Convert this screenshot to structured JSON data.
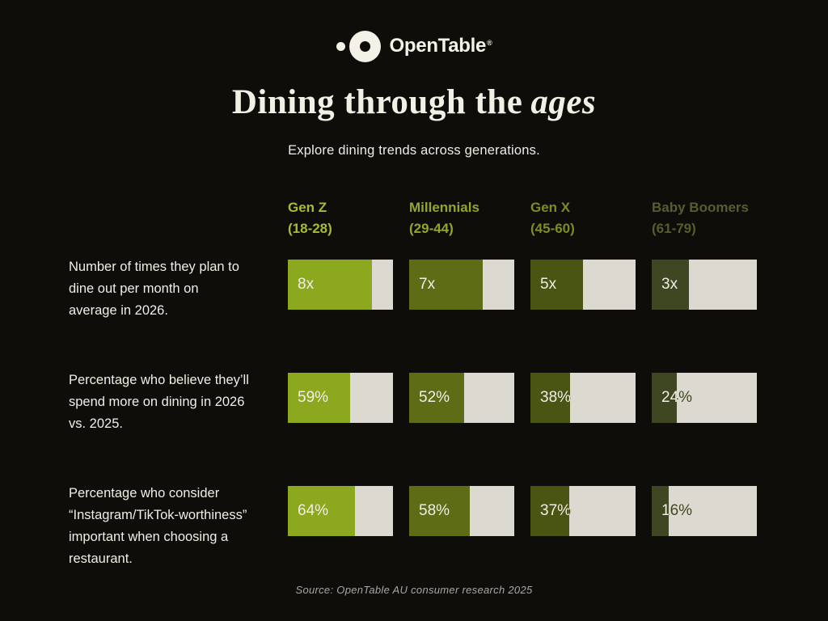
{
  "brand": {
    "logo_text": "OpenTable",
    "registered": "®"
  },
  "header": {
    "title_regular": "Dining through the",
    "title_italic": "ages",
    "subtitle": "Explore dining trends across generations."
  },
  "columns": [
    {
      "name": "Gen Z",
      "range": "(18-28)",
      "header_color": "#A9BC2F",
      "fill_color": "#8CA81F"
    },
    {
      "name": "Millennials",
      "range": "(29-44)",
      "header_color": "#96A528",
      "fill_color": "#5E6D15"
    },
    {
      "name": "Gen X",
      "range": "(45-60)",
      "header_color": "#7E8C22",
      "fill_color": "#4A5413"
    },
    {
      "name": "Baby Boomers",
      "range": "(61-79)",
      "header_color": "#565E2B",
      "fill_color": "#3F4622"
    }
  ],
  "rows": [
    {
      "label_lines": [
        "Number of times they plan to",
        "dine out per month on",
        "average in 2026."
      ],
      "bars": [
        {
          "value": "8x",
          "fill_pct": 80
        },
        {
          "value": "7x",
          "fill_pct": 70
        },
        {
          "value": "5x",
          "fill_pct": 50
        },
        {
          "value": "3x",
          "fill_pct": 35
        }
      ]
    },
    {
      "label_lines": [
        "Percentage who believe they’ll",
        "spend more on dining in 2026",
        "vs. 2025."
      ],
      "bars": [
        {
          "value": "59%",
          "fill_pct": 59
        },
        {
          "value": "52%",
          "fill_pct": 52
        },
        {
          "value": "38%",
          "fill_pct": 38
        },
        {
          "value": "24%",
          "fill_pct": 24
        }
      ]
    },
    {
      "label_lines": [
        "Percentage who consider",
        "“Instagram/TikTok-worthiness”",
        "important when choosing a",
        "restaurant."
      ],
      "bars": [
        {
          "value": "64%",
          "fill_pct": 64
        },
        {
          "value": "58%",
          "fill_pct": 58
        },
        {
          "value": "37%",
          "fill_pct": 37
        },
        {
          "value": "16%",
          "fill_pct": 16
        }
      ]
    }
  ],
  "footer": {
    "source": "Source: OpenTable AU consumer research 2025"
  },
  "colors": {
    "background": "#0E0D09",
    "track": "#DCDAD0",
    "cream_text": "#F1EEE3",
    "title_cream": "#F2EFE4",
    "footer_grey": "#A9A8A1"
  },
  "chart_data": {
    "type": "bar",
    "title": "Dining through the ages",
    "subtitle": "Explore dining trends across generations.",
    "categories": [
      "Gen Z (18-28)",
      "Millennials (29-44)",
      "Gen X (45-60)",
      "Baby Boomers (61-79)"
    ],
    "series": [
      {
        "name": "Number of times they plan to dine out per month on average in 2026.",
        "values": [
          8,
          7,
          5,
          3
        ],
        "unit": "x",
        "bar_fill_percent_of_track": [
          80,
          70,
          50,
          35
        ]
      },
      {
        "name": "Percentage who believe they’ll spend more on dining in 2026 vs. 2025.",
        "values": [
          59,
          52,
          38,
          24
        ],
        "unit": "%",
        "bar_fill_percent_of_track": [
          59,
          52,
          38,
          24
        ]
      },
      {
        "name": "Percentage who consider “Instagram/TikTok-worthiness” important when choosing a restaurant.",
        "values": [
          64,
          58,
          37,
          16
        ],
        "unit": "%",
        "bar_fill_percent_of_track": [
          64,
          58,
          37,
          16
        ]
      }
    ],
    "orientation": "horizontal",
    "grid": false,
    "legend_position": "top-columns",
    "source": "Source: OpenTable AU consumer research 2025"
  }
}
